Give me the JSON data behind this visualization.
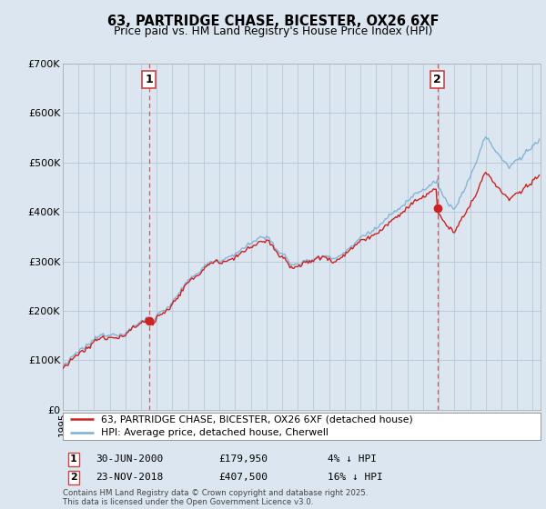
{
  "title_line1": "63, PARTRIDGE CHASE, BICESTER, OX26 6XF",
  "title_line2": "Price paid vs. HM Land Registry's House Price Index (HPI)",
  "xlim_start": 1995.0,
  "xlim_end": 2025.5,
  "ylim": [
    0,
    700000
  ],
  "yticks": [
    0,
    100000,
    200000,
    300000,
    400000,
    500000,
    600000,
    700000
  ],
  "ytick_labels": [
    "£0",
    "£100K",
    "£200K",
    "£300K",
    "£400K",
    "£500K",
    "£600K",
    "£700K"
  ],
  "hpi_color": "#7ab0d4",
  "price_color": "#cc2222",
  "vline_color": "#cc4444",
  "vline1_x": 2000.5,
  "vline2_x": 2018.92,
  "marker1_x": 2000.5,
  "marker1_y": 179950,
  "marker2_x": 2018.92,
  "marker2_y": 407500,
  "legend_label_price": "63, PARTRIDGE CHASE, BICESTER, OX26 6XF (detached house)",
  "legend_label_hpi": "HPI: Average price, detached house, Cherwell",
  "annotation1_label": "1",
  "annotation2_label": "2",
  "note1_date": "30-JUN-2000",
  "note1_price": "£179,950",
  "note1_pct": "4% ↓ HPI",
  "note2_date": "23-NOV-2018",
  "note2_price": "£407,500",
  "note2_pct": "16% ↓ HPI",
  "footer": "Contains HM Land Registry data © Crown copyright and database right 2025.\nThis data is licensed under the Open Government Licence v3.0.",
  "bg_color": "#dce6f0",
  "plot_bg_color": "#dce6f0",
  "grid_color": "#b8c8d8"
}
